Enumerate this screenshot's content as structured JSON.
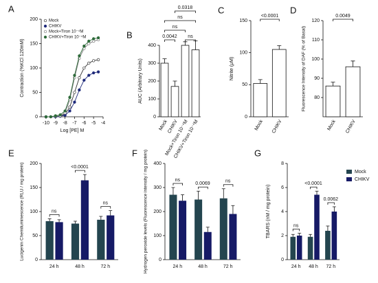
{
  "chart_data": [
    {
      "type": "line",
      "panel": "A",
      "x_label": "Log [PE] M",
      "y_label": "Contraction (%KCl 120mM)",
      "x": [
        -10,
        -9.5,
        -9,
        -8.5,
        -8,
        -7.5,
        -7,
        -6.5,
        -6,
        -5.5,
        -5,
        -4.5
      ],
      "xlim": [
        -10.5,
        -4
      ],
      "xticks": [
        -10,
        -9,
        -8,
        -7,
        -6,
        -5,
        -4
      ],
      "ylim": [
        0,
        200
      ],
      "yticks": [
        0,
        50,
        100,
        150,
        200
      ],
      "series": [
        {
          "name": "Mock",
          "color": "#333333",
          "filled": false,
          "values": [
            0,
            0,
            1,
            2,
            5,
            20,
            50,
            80,
            100,
            110,
            115,
            117
          ]
        },
        {
          "name": "CHIKV",
          "color": "#1f2a7a",
          "filled": true,
          "values": [
            0,
            0,
            0,
            1,
            3,
            12,
            30,
            55,
            75,
            85,
            90,
            92
          ]
        },
        {
          "name": "Mock+Tiron 10⁻⁴M",
          "color": "#777777",
          "filled": false,
          "values": [
            0,
            0,
            1,
            2,
            8,
            35,
            80,
            120,
            140,
            150,
            155,
            158
          ]
        },
        {
          "name": "CHIKV+Tiron 10⁻⁴M",
          "color": "#2e6b3a",
          "filled": true,
          "values": [
            0,
            0,
            2,
            4,
            12,
            40,
            85,
            125,
            145,
            155,
            160,
            162
          ]
        }
      ]
    },
    {
      "type": "bar",
      "panel": "B",
      "y_label": "AUC (Arbitrary Units)",
      "categories": [
        "Mock",
        "CHIKV",
        "Mock+Tiron 10⁻⁴M",
        "CHIKV+Tiron 10⁻⁴M"
      ],
      "values": [
        300,
        170,
        400,
        375
      ],
      "errors": [
        25,
        30,
        20,
        50
      ],
      "color": "#ffffff",
      "ylim": [
        0,
        400
      ],
      "yticks": [
        0,
        100,
        200,
        300,
        400
      ],
      "annotations": [
        "0.0318",
        "ns",
        "ns",
        "0.0042",
        "ns"
      ]
    },
    {
      "type": "bar",
      "panel": "C",
      "y_label": "Nitrite (μM)",
      "categories": [
        "Mock",
        "CHIKV"
      ],
      "values": [
        52,
        105
      ],
      "errors": [
        6,
        6
      ],
      "color": "#ffffff",
      "ylim": [
        0,
        150
      ],
      "yticks": [
        0,
        50,
        100,
        150
      ],
      "annotations": [
        "<0.0001"
      ]
    },
    {
      "type": "bar",
      "panel": "D",
      "y_label": "Fluorescence Intensity of DAF (% of Basal)",
      "categories": [
        "Mock",
        "CHIKV"
      ],
      "values": [
        86,
        96
      ],
      "errors": [
        2,
        3
      ],
      "color": "#ffffff",
      "ylim": [
        70,
        120
      ],
      "yticks": [
        80,
        90,
        100,
        110,
        120
      ],
      "annotations": [
        "0.0049"
      ]
    },
    {
      "type": "grouped_bar",
      "panel": "E",
      "y_label": "Lucigenin Chemiluminescence (RLU / mg protein)",
      "categories": [
        "24 h",
        "48 h",
        "72 h"
      ],
      "ylim": [
        0,
        200
      ],
      "yticks": [
        0,
        50,
        100,
        150,
        200
      ],
      "series": [
        {
          "name": "Mock",
          "color": "#24454f",
          "values": [
            80,
            75,
            83
          ],
          "errors": [
            5,
            5,
            7
          ]
        },
        {
          "name": "CHIKV",
          "color": "#161a66",
          "values": [
            78,
            165,
            92
          ],
          "errors": [
            5,
            12,
            10
          ]
        }
      ],
      "annotations": [
        "ns",
        "<0.0001",
        "ns"
      ],
      "legend": false
    },
    {
      "type": "grouped_bar",
      "panel": "F",
      "y_label": "Hydrogen peroxide levels (Fluorescence intensity / mg protein)",
      "categories": [
        "24 h",
        "48 h",
        "72 h"
      ],
      "ylim": [
        0,
        400
      ],
      "yticks": [
        0,
        100,
        200,
        300,
        400
      ],
      "series": [
        {
          "name": "Mock",
          "color": "#24454f",
          "values": [
            270,
            250,
            255
          ],
          "errors": [
            30,
            35,
            40
          ]
        },
        {
          "name": "CHIKV",
          "color": "#161a66",
          "values": [
            245,
            115,
            190
          ],
          "errors": [
            25,
            20,
            35
          ]
        }
      ],
      "annotations": [
        "ns",
        "0.0069",
        "ns"
      ],
      "legend": false
    },
    {
      "type": "grouped_bar",
      "panel": "G",
      "y_label": "TBARS (nM / mg protein)",
      "categories": [
        "24 h",
        "48 h",
        "72 h"
      ],
      "ylim": [
        0,
        8
      ],
      "yticks": [
        0,
        2,
        4,
        6,
        8
      ],
      "series": [
        {
          "name": "Mock",
          "color": "#24454f",
          "values": [
            1.9,
            1.9,
            2.4
          ],
          "errors": [
            0.2,
            0.2,
            0.4
          ]
        },
        {
          "name": "CHIKV",
          "color": "#161a66",
          "values": [
            2.0,
            5.4,
            4.0
          ],
          "errors": [
            0.2,
            0.3,
            0.4
          ]
        }
      ],
      "annotations": [
        "ns",
        "<0.0001",
        "0.0062"
      ],
      "legend": true
    }
  ]
}
